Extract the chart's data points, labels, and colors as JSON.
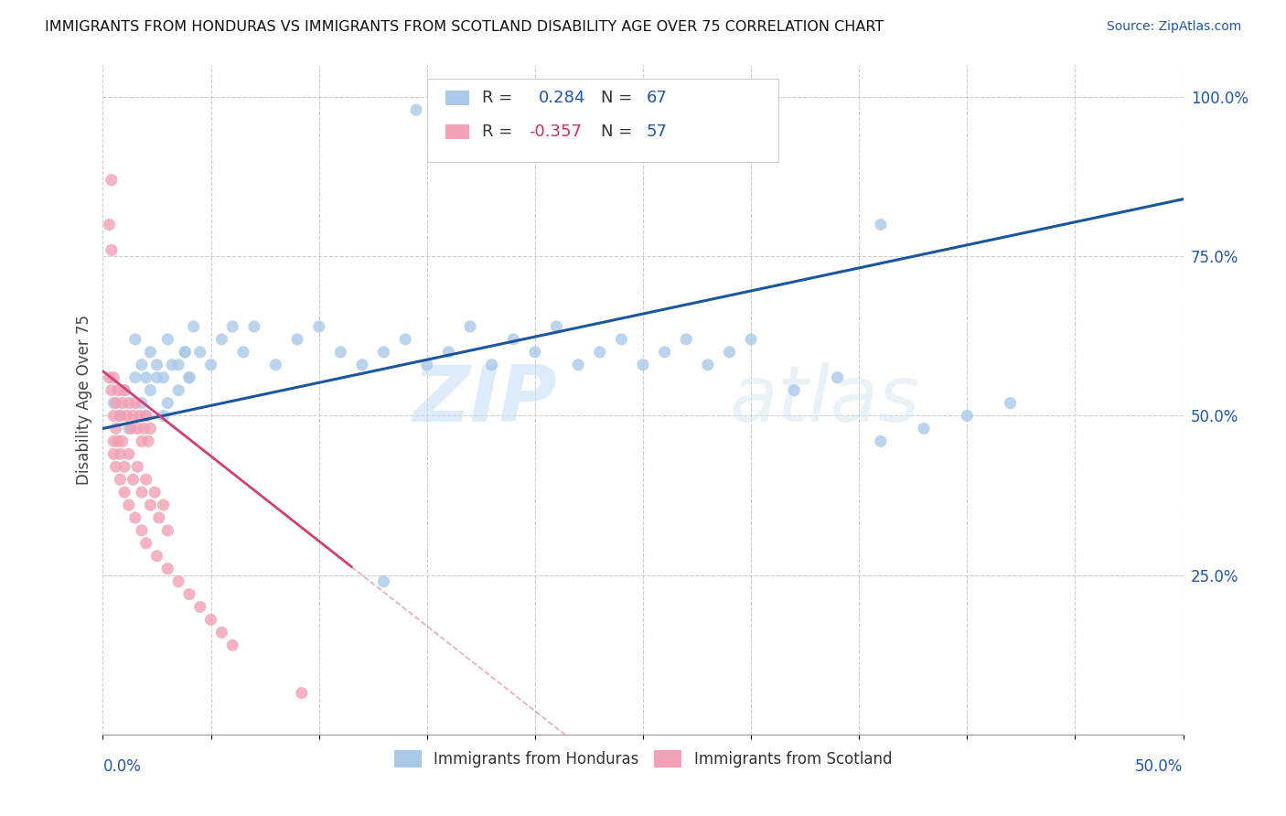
{
  "title": "IMMIGRANTS FROM HONDURAS VS IMMIGRANTS FROM SCOTLAND DISABILITY AGE OVER 75 CORRELATION CHART",
  "source": "Source: ZipAtlas.com",
  "ylabel": "Disability Age Over 75",
  "legend_label_honduras": "Immigrants from Honduras",
  "legend_label_scotland": "Immigrants from Scotland",
  "color_honduras": "#aac8e8",
  "color_scotland": "#f2a0b5",
  "line_color_honduras": "#1a55a0",
  "line_color_scotland": "#d04070",
  "watermark_zip": "ZIP",
  "watermark_atlas": "atlas",
  "xlim": [
    0.0,
    0.5
  ],
  "ylim": [
    0.0,
    1.05
  ],
  "r_honduras": 0.284,
  "n_honduras": 67,
  "r_scotland": -0.357,
  "n_scotland": 57,
  "hon_x": [
    0.005,
    0.008,
    0.01,
    0.012,
    0.015,
    0.018,
    0.02,
    0.022,
    0.025,
    0.028,
    0.03,
    0.032,
    0.035,
    0.038,
    0.04,
    0.015,
    0.018,
    0.02,
    0.022,
    0.025,
    0.028,
    0.03,
    0.035,
    0.038,
    0.04,
    0.042,
    0.045,
    0.05,
    0.055,
    0.06,
    0.065,
    0.07,
    0.08,
    0.09,
    0.1,
    0.11,
    0.12,
    0.13,
    0.14,
    0.15,
    0.16,
    0.17,
    0.18,
    0.19,
    0.2,
    0.21,
    0.22,
    0.23,
    0.24,
    0.25,
    0.26,
    0.27,
    0.28,
    0.29,
    0.3,
    0.32,
    0.34,
    0.36,
    0.38,
    0.4,
    0.145,
    0.2,
    0.22,
    0.24,
    0.36,
    0.13,
    0.42
  ],
  "hon_y": [
    0.52,
    0.5,
    0.54,
    0.48,
    0.56,
    0.52,
    0.5,
    0.54,
    0.56,
    0.5,
    0.52,
    0.58,
    0.54,
    0.6,
    0.56,
    0.62,
    0.58,
    0.56,
    0.6,
    0.58,
    0.56,
    0.62,
    0.58,
    0.6,
    0.56,
    0.64,
    0.6,
    0.58,
    0.62,
    0.64,
    0.6,
    0.64,
    0.58,
    0.62,
    0.64,
    0.6,
    0.58,
    0.6,
    0.62,
    0.58,
    0.6,
    0.64,
    0.58,
    0.62,
    0.6,
    0.64,
    0.58,
    0.6,
    0.62,
    0.58,
    0.6,
    0.62,
    0.58,
    0.6,
    0.62,
    0.54,
    0.56,
    0.46,
    0.48,
    0.5,
    0.98,
    0.985,
    0.985,
    0.985,
    0.8,
    0.24,
    0.52
  ],
  "sco_x": [
    0.003,
    0.004,
    0.005,
    0.006,
    0.007,
    0.008,
    0.009,
    0.01,
    0.011,
    0.012,
    0.013,
    0.014,
    0.015,
    0.016,
    0.017,
    0.018,
    0.019,
    0.02,
    0.021,
    0.022,
    0.005,
    0.006,
    0.007,
    0.008,
    0.009,
    0.01,
    0.012,
    0.014,
    0.016,
    0.018,
    0.02,
    0.022,
    0.024,
    0.026,
    0.028,
    0.03,
    0.005,
    0.006,
    0.008,
    0.01,
    0.012,
    0.015,
    0.018,
    0.02,
    0.025,
    0.03,
    0.035,
    0.04,
    0.045,
    0.05,
    0.055,
    0.06,
    0.004,
    0.092,
    0.003,
    0.004,
    0.005
  ],
  "sco_y": [
    0.56,
    0.54,
    0.56,
    0.52,
    0.54,
    0.5,
    0.52,
    0.54,
    0.5,
    0.52,
    0.48,
    0.5,
    0.52,
    0.48,
    0.5,
    0.46,
    0.48,
    0.5,
    0.46,
    0.48,
    0.5,
    0.48,
    0.46,
    0.44,
    0.46,
    0.42,
    0.44,
    0.4,
    0.42,
    0.38,
    0.4,
    0.36,
    0.38,
    0.34,
    0.36,
    0.32,
    0.44,
    0.42,
    0.4,
    0.38,
    0.36,
    0.34,
    0.32,
    0.3,
    0.28,
    0.26,
    0.24,
    0.22,
    0.2,
    0.18,
    0.16,
    0.14,
    0.87,
    0.065,
    0.8,
    0.76,
    0.46
  ]
}
